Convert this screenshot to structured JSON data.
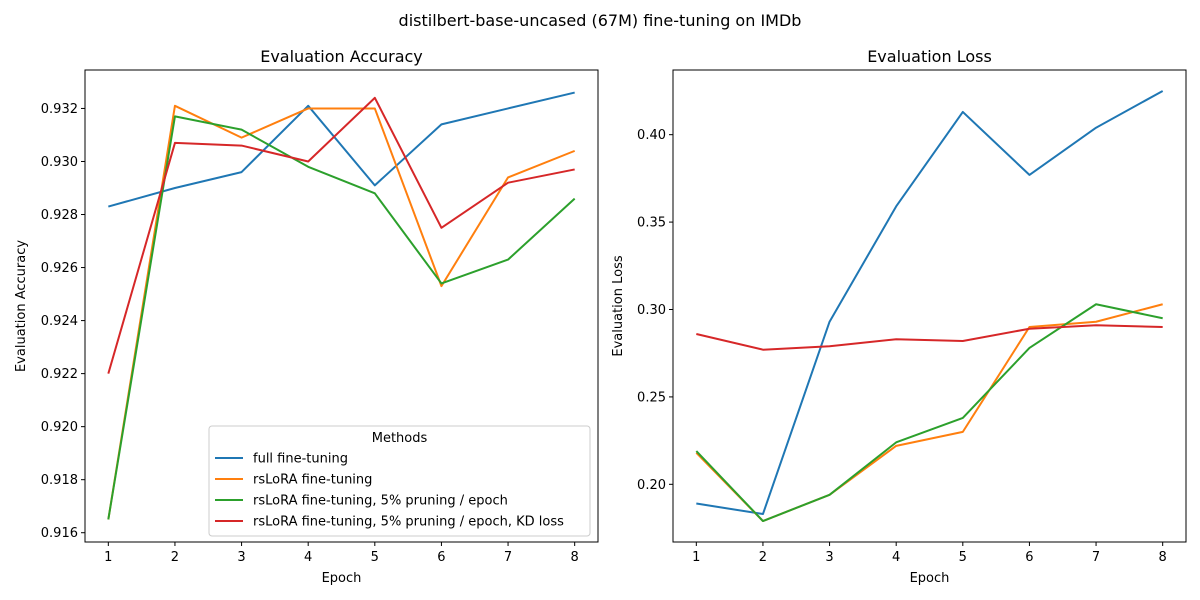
{
  "figure": {
    "suptitle": "distilbert-base-uncased (67M) fine-tuning on IMDb"
  },
  "legend": {
    "title": "Methods",
    "placement": "lower right (left panel)"
  },
  "chart_data": [
    {
      "type": "line",
      "title": "Evaluation Accuracy",
      "xlabel": "Epoch",
      "ylabel": "Evaluation Accuracy",
      "x": [
        1,
        2,
        3,
        4,
        5,
        6,
        7,
        8
      ],
      "xlim": [
        0.65,
        8.35
      ],
      "ylim": [
        0.91565,
        0.93345
      ],
      "xticks": [
        "1",
        "2",
        "3",
        "4",
        "5",
        "6",
        "7",
        "8"
      ],
      "yticks": [
        0.916,
        0.918,
        0.92,
        0.922,
        0.924,
        0.926,
        0.928,
        0.93,
        0.932
      ],
      "ytick_labels": [
        "0.916",
        "0.918",
        "0.920",
        "0.922",
        "0.924",
        "0.926",
        "0.928",
        "0.930",
        "0.932"
      ],
      "legend": true,
      "series": [
        {
          "name": "full fine-tuning",
          "color": "#1f77b4",
          "values": [
            0.9283,
            0.929,
            0.9296,
            0.9321,
            0.9291,
            0.9314,
            0.932,
            0.9326
          ]
        },
        {
          "name": "rsLoRA fine-tuning",
          "color": "#ff7f0e",
          "values": [
            0.9165,
            0.9321,
            0.9309,
            0.932,
            0.932,
            0.9253,
            0.9294,
            0.9304
          ]
        },
        {
          "name": "rsLoRA fine-tuning, 5% pruning / epoch",
          "color": "#2ca02c",
          "values": [
            0.9165,
            0.9317,
            0.9312,
            0.9298,
            0.9288,
            0.9254,
            0.9263,
            0.9286
          ]
        },
        {
          "name": "rsLoRA fine-tuning, 5% pruning / epoch, KD loss",
          "color": "#d62728",
          "values": [
            0.922,
            0.9307,
            0.9306,
            0.93,
            0.9324,
            0.9275,
            0.9292,
            0.9297
          ]
        }
      ]
    },
    {
      "type": "line",
      "title": "Evaluation Loss",
      "xlabel": "Epoch",
      "ylabel": "Evaluation Loss",
      "x": [
        1,
        2,
        3,
        4,
        5,
        6,
        7,
        8
      ],
      "xlim": [
        0.65,
        8.35
      ],
      "ylim": [
        0.167,
        0.437
      ],
      "xticks": [
        "1",
        "2",
        "3",
        "4",
        "5",
        "6",
        "7",
        "8"
      ],
      "yticks": [
        0.2,
        0.25,
        0.3,
        0.35,
        0.4
      ],
      "ytick_labels": [
        "0.20",
        "0.25",
        "0.30",
        "0.35",
        "0.40"
      ],
      "legend": false,
      "series": [
        {
          "name": "full fine-tuning",
          "color": "#1f77b4",
          "values": [
            0.189,
            0.183,
            0.293,
            0.359,
            0.413,
            0.377,
            0.404,
            0.425
          ]
        },
        {
          "name": "rsLoRA fine-tuning",
          "color": "#ff7f0e",
          "values": [
            0.218,
            0.179,
            0.194,
            0.222,
            0.23,
            0.29,
            0.293,
            0.303
          ]
        },
        {
          "name": "rsLoRA fine-tuning, 5% pruning / epoch",
          "color": "#2ca02c",
          "values": [
            0.219,
            0.179,
            0.194,
            0.224,
            0.238,
            0.278,
            0.303,
            0.295
          ]
        },
        {
          "name": "rsLoRA fine-tuning, 5% pruning / epoch, KD loss",
          "color": "#d62728",
          "values": [
            0.286,
            0.277,
            0.279,
            0.283,
            0.282,
            0.289,
            0.291,
            0.29
          ]
        }
      ]
    }
  ]
}
